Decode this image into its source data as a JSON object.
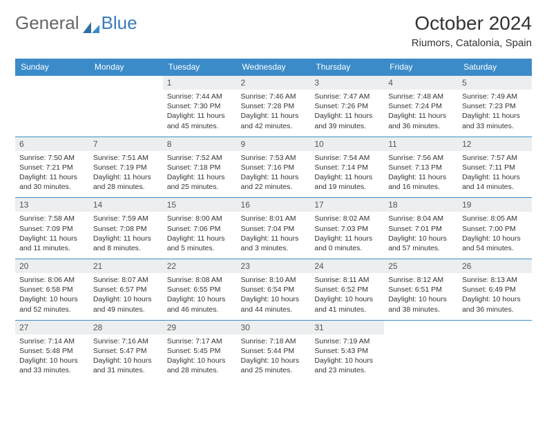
{
  "brand": {
    "part1": "General",
    "part2": "Blue"
  },
  "title": "October 2024",
  "location": "Riumors, Catalonia, Spain",
  "colors": {
    "header_bg": "#3b8bc9",
    "header_text": "#ffffff",
    "daynum_bg": "#eceeef",
    "border": "#3b8bc9",
    "brand_gray": "#666666",
    "brand_blue": "#3a7bbf"
  },
  "day_headers": [
    "Sunday",
    "Monday",
    "Tuesday",
    "Wednesday",
    "Thursday",
    "Friday",
    "Saturday"
  ],
  "weeks": [
    [
      {
        "n": "",
        "sr": "",
        "ss": "",
        "dl": ""
      },
      {
        "n": "",
        "sr": "",
        "ss": "",
        "dl": ""
      },
      {
        "n": "1",
        "sr": "Sunrise: 7:44 AM",
        "ss": "Sunset: 7:30 PM",
        "dl": "Daylight: 11 hours and 45 minutes."
      },
      {
        "n": "2",
        "sr": "Sunrise: 7:46 AM",
        "ss": "Sunset: 7:28 PM",
        "dl": "Daylight: 11 hours and 42 minutes."
      },
      {
        "n": "3",
        "sr": "Sunrise: 7:47 AM",
        "ss": "Sunset: 7:26 PM",
        "dl": "Daylight: 11 hours and 39 minutes."
      },
      {
        "n": "4",
        "sr": "Sunrise: 7:48 AM",
        "ss": "Sunset: 7:24 PM",
        "dl": "Daylight: 11 hours and 36 minutes."
      },
      {
        "n": "5",
        "sr": "Sunrise: 7:49 AM",
        "ss": "Sunset: 7:23 PM",
        "dl": "Daylight: 11 hours and 33 minutes."
      }
    ],
    [
      {
        "n": "6",
        "sr": "Sunrise: 7:50 AM",
        "ss": "Sunset: 7:21 PM",
        "dl": "Daylight: 11 hours and 30 minutes."
      },
      {
        "n": "7",
        "sr": "Sunrise: 7:51 AM",
        "ss": "Sunset: 7:19 PM",
        "dl": "Daylight: 11 hours and 28 minutes."
      },
      {
        "n": "8",
        "sr": "Sunrise: 7:52 AM",
        "ss": "Sunset: 7:18 PM",
        "dl": "Daylight: 11 hours and 25 minutes."
      },
      {
        "n": "9",
        "sr": "Sunrise: 7:53 AM",
        "ss": "Sunset: 7:16 PM",
        "dl": "Daylight: 11 hours and 22 minutes."
      },
      {
        "n": "10",
        "sr": "Sunrise: 7:54 AM",
        "ss": "Sunset: 7:14 PM",
        "dl": "Daylight: 11 hours and 19 minutes."
      },
      {
        "n": "11",
        "sr": "Sunrise: 7:56 AM",
        "ss": "Sunset: 7:13 PM",
        "dl": "Daylight: 11 hours and 16 minutes."
      },
      {
        "n": "12",
        "sr": "Sunrise: 7:57 AM",
        "ss": "Sunset: 7:11 PM",
        "dl": "Daylight: 11 hours and 14 minutes."
      }
    ],
    [
      {
        "n": "13",
        "sr": "Sunrise: 7:58 AM",
        "ss": "Sunset: 7:09 PM",
        "dl": "Daylight: 11 hours and 11 minutes."
      },
      {
        "n": "14",
        "sr": "Sunrise: 7:59 AM",
        "ss": "Sunset: 7:08 PM",
        "dl": "Daylight: 11 hours and 8 minutes."
      },
      {
        "n": "15",
        "sr": "Sunrise: 8:00 AM",
        "ss": "Sunset: 7:06 PM",
        "dl": "Daylight: 11 hours and 5 minutes."
      },
      {
        "n": "16",
        "sr": "Sunrise: 8:01 AM",
        "ss": "Sunset: 7:04 PM",
        "dl": "Daylight: 11 hours and 3 minutes."
      },
      {
        "n": "17",
        "sr": "Sunrise: 8:02 AM",
        "ss": "Sunset: 7:03 PM",
        "dl": "Daylight: 11 hours and 0 minutes."
      },
      {
        "n": "18",
        "sr": "Sunrise: 8:04 AM",
        "ss": "Sunset: 7:01 PM",
        "dl": "Daylight: 10 hours and 57 minutes."
      },
      {
        "n": "19",
        "sr": "Sunrise: 8:05 AM",
        "ss": "Sunset: 7:00 PM",
        "dl": "Daylight: 10 hours and 54 minutes."
      }
    ],
    [
      {
        "n": "20",
        "sr": "Sunrise: 8:06 AM",
        "ss": "Sunset: 6:58 PM",
        "dl": "Daylight: 10 hours and 52 minutes."
      },
      {
        "n": "21",
        "sr": "Sunrise: 8:07 AM",
        "ss": "Sunset: 6:57 PM",
        "dl": "Daylight: 10 hours and 49 minutes."
      },
      {
        "n": "22",
        "sr": "Sunrise: 8:08 AM",
        "ss": "Sunset: 6:55 PM",
        "dl": "Daylight: 10 hours and 46 minutes."
      },
      {
        "n": "23",
        "sr": "Sunrise: 8:10 AM",
        "ss": "Sunset: 6:54 PM",
        "dl": "Daylight: 10 hours and 44 minutes."
      },
      {
        "n": "24",
        "sr": "Sunrise: 8:11 AM",
        "ss": "Sunset: 6:52 PM",
        "dl": "Daylight: 10 hours and 41 minutes."
      },
      {
        "n": "25",
        "sr": "Sunrise: 8:12 AM",
        "ss": "Sunset: 6:51 PM",
        "dl": "Daylight: 10 hours and 38 minutes."
      },
      {
        "n": "26",
        "sr": "Sunrise: 8:13 AM",
        "ss": "Sunset: 6:49 PM",
        "dl": "Daylight: 10 hours and 36 minutes."
      }
    ],
    [
      {
        "n": "27",
        "sr": "Sunrise: 7:14 AM",
        "ss": "Sunset: 5:48 PM",
        "dl": "Daylight: 10 hours and 33 minutes."
      },
      {
        "n": "28",
        "sr": "Sunrise: 7:16 AM",
        "ss": "Sunset: 5:47 PM",
        "dl": "Daylight: 10 hours and 31 minutes."
      },
      {
        "n": "29",
        "sr": "Sunrise: 7:17 AM",
        "ss": "Sunset: 5:45 PM",
        "dl": "Daylight: 10 hours and 28 minutes."
      },
      {
        "n": "30",
        "sr": "Sunrise: 7:18 AM",
        "ss": "Sunset: 5:44 PM",
        "dl": "Daylight: 10 hours and 25 minutes."
      },
      {
        "n": "31",
        "sr": "Sunrise: 7:19 AM",
        "ss": "Sunset: 5:43 PM",
        "dl": "Daylight: 10 hours and 23 minutes."
      },
      {
        "n": "",
        "sr": "",
        "ss": "",
        "dl": ""
      },
      {
        "n": "",
        "sr": "",
        "ss": "",
        "dl": ""
      }
    ]
  ]
}
